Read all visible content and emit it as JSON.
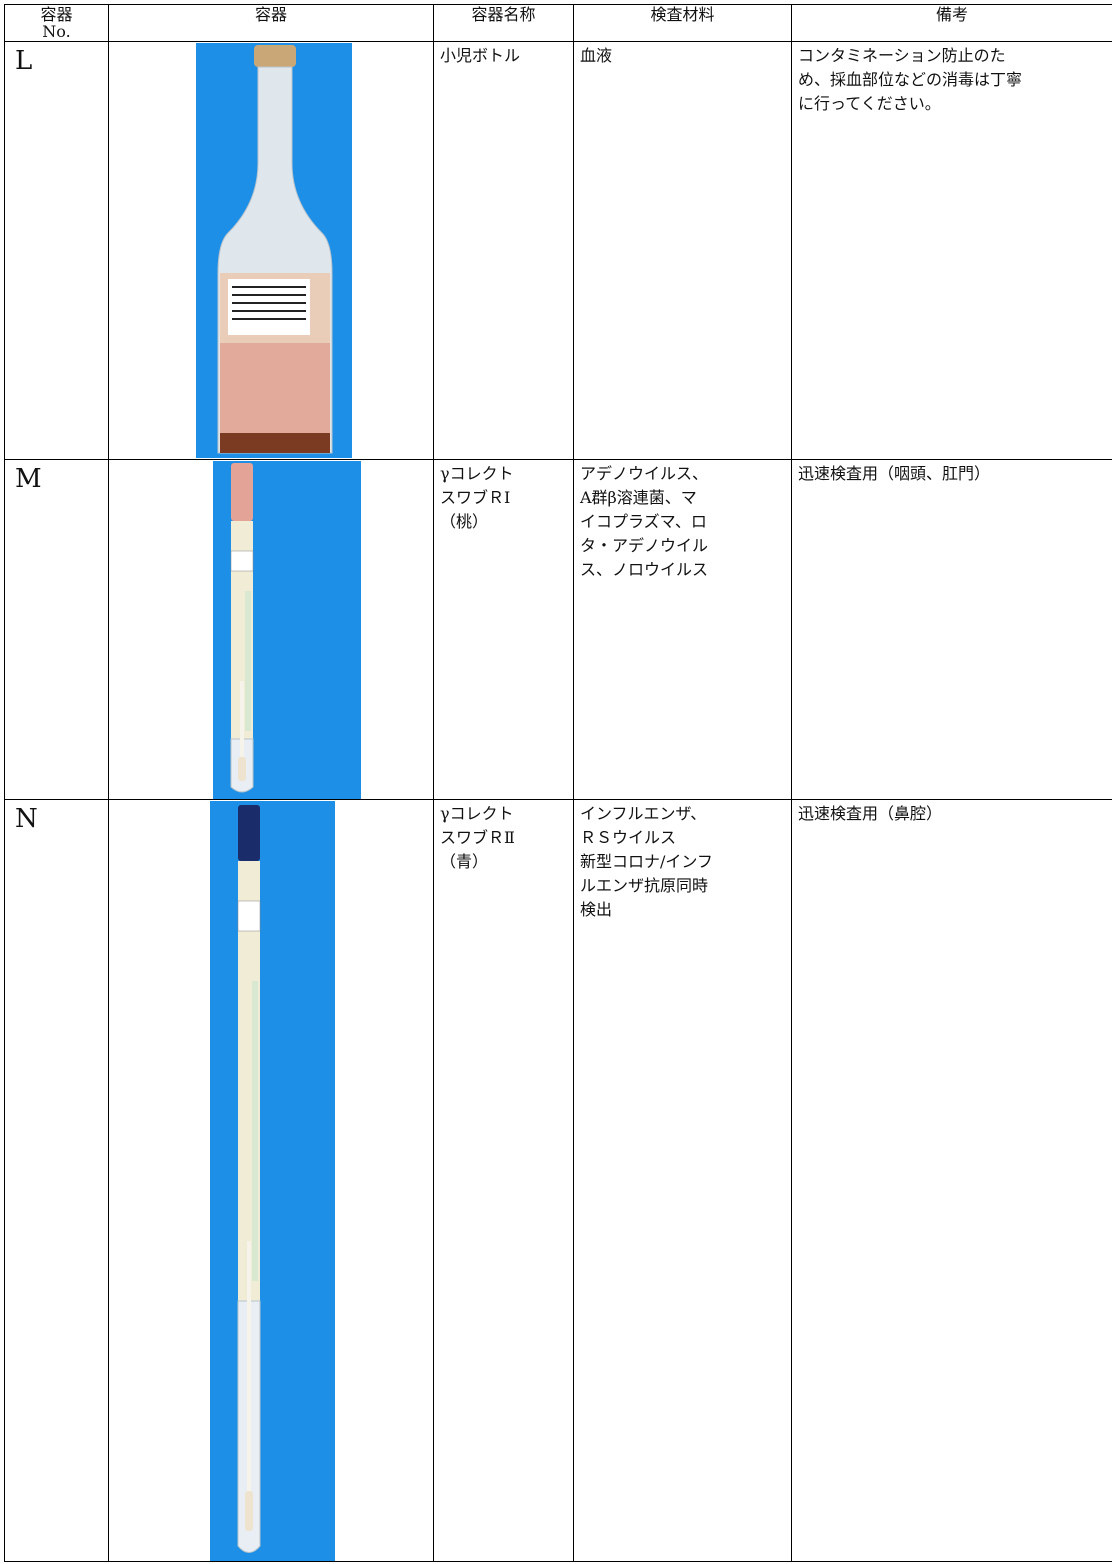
{
  "table": {
    "header": [
      [
        "容器",
        "No."
      ],
      [
        "容器"
      ],
      [
        "容器名称"
      ],
      [
        "検査材料"
      ],
      [
        "備考"
      ]
    ],
    "rows": [
      {
        "no": "L",
        "name": [
          "小児ボトル"
        ],
        "material": [
          "血液"
        ],
        "note": [
          "コンタミネーション防止のた",
          "め、採血部位などの消毒は丁寧",
          "に行ってください。"
        ]
      },
      {
        "no": "M",
        "name": [
          "γコレクト",
          "スワブＲI",
          "（桃）"
        ],
        "material": [
          "アデノウイルス、",
          "A群β溶連菌、マ",
          "イコプラズマ、ロ",
          "タ・アデノウイル",
          "ス、ノロウイルス"
        ],
        "note": [
          "迅速検査用（咽頭、肛門）"
        ]
      },
      {
        "no": "N",
        "name": [
          "γコレクト",
          "スワブＲⅡ",
          "（青）"
        ],
        "material": [
          "インフルエンザ、",
          "ＲＳウイルス",
          "新型コロナ/インフ",
          "ルエンザ抗原同時",
          "検出"
        ],
        "note": [
          "迅速検査用（鼻腔）"
        ]
      }
    ]
  }
}
